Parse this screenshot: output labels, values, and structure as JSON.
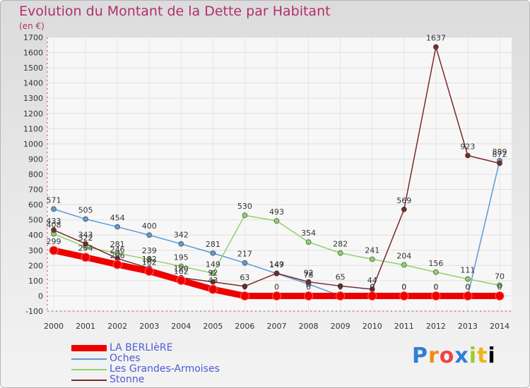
{
  "title": "Evolution du Montant de la Dette par Habitant",
  "subtitle": "(en €)",
  "logo": [
    "P",
    "r",
    "o",
    "x",
    "i",
    "t",
    "i"
  ],
  "chart_data": {
    "type": "line",
    "x": [
      "2000",
      "2001",
      "2002",
      "2003",
      "2004",
      "2005",
      "2006",
      "2007",
      "2008",
      "2009",
      "2010",
      "2011",
      "2012",
      "2013",
      "2014"
    ],
    "ylim": [
      -100,
      1700
    ],
    "yticks": [
      -100,
      0,
      100,
      200,
      300,
      400,
      500,
      600,
      700,
      800,
      900,
      1000,
      1100,
      1200,
      1300,
      1400,
      1500,
      1600,
      1700
    ],
    "series": [
      {
        "name": "LA BERLIèRE",
        "color": "#ee0000",
        "values": [
          299,
          254,
          206,
          162,
          102,
          43,
          0,
          0,
          0,
          0,
          0,
          0,
          0,
          0,
          0
        ]
      },
      {
        "name": "Oches",
        "color": "#5b9bd5",
        "values": [
          571,
          505,
          454,
          400,
          342,
          281,
          217,
          147,
          78,
          0,
          0,
          0,
          0,
          0,
          889
        ]
      },
      {
        "name": "Les Grandes-Armoises",
        "color": "#8fd16a",
        "values": [
          408,
          322,
          281,
          239,
          195,
          149,
          530,
          493,
          354,
          282,
          241,
          204,
          156,
          111,
          70
        ]
      },
      {
        "name": "Stonne",
        "color": "#7a2a2a",
        "values": [
          433,
          343,
          246,
          182,
          120,
          92,
          63,
          149,
          92,
          65,
          44,
          569,
          1637,
          923,
          872
        ]
      }
    ],
    "labels": [
      [
        "299",
        "254",
        "206",
        "162",
        "102",
        "43",
        "0",
        "0",
        "0",
        "0",
        "0",
        "0",
        "0",
        "0",
        "0"
      ],
      [
        "571",
        "505",
        "454",
        "400",
        "342",
        "281",
        "217",
        "147",
        "78",
        "0",
        "0",
        "0",
        "0",
        "0",
        "889"
      ],
      [
        "408",
        "322",
        "281",
        "239",
        "195",
        "149",
        "530",
        "493",
        "354",
        "282",
        "241",
        "204",
        "156",
        "111",
        "70"
      ],
      [
        "433",
        "343",
        "246",
        "182",
        "120",
        "92",
        "63",
        "149",
        "92",
        "65",
        "44",
        "569",
        "1637",
        "923",
        "872"
      ]
    ]
  }
}
